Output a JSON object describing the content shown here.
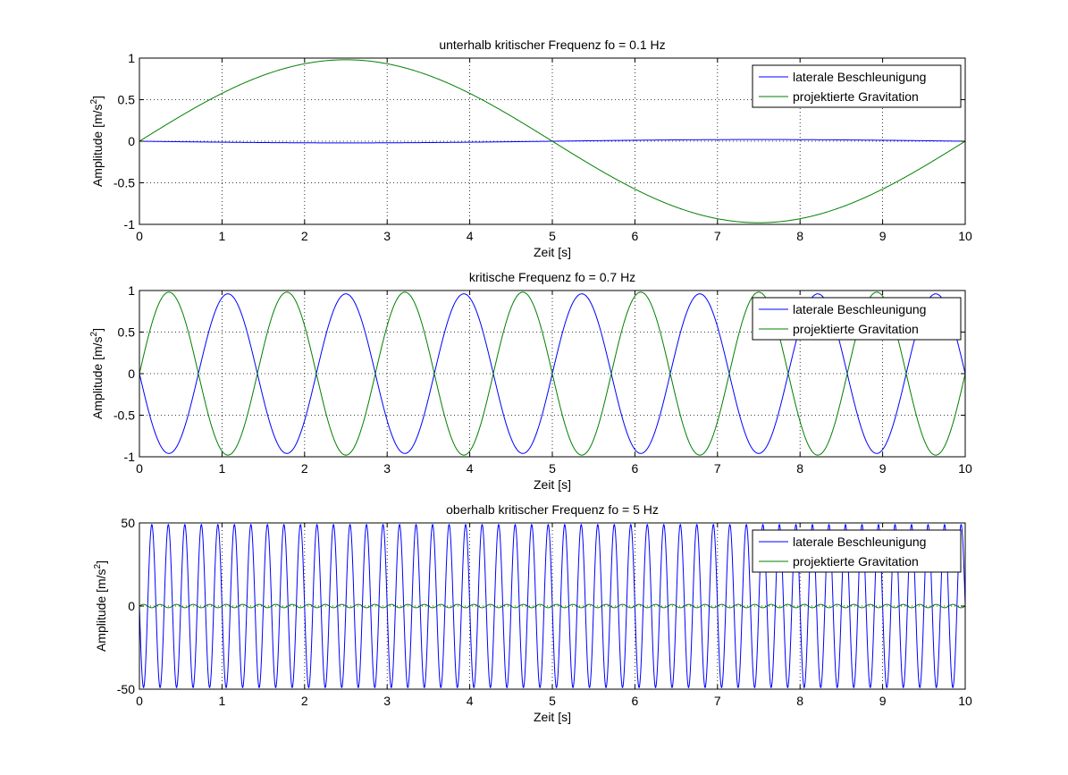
{
  "chart_data": [
    {
      "type": "line",
      "title": "unterhalb kritischer Frequenz fo = 0.1 Hz",
      "xlabel": "Zeit [s]",
      "ylabel_main": "Amplitude [m/s",
      "ylabel_sup": "2",
      "ylabel_end": "]",
      "xlim": [
        0,
        10
      ],
      "ylim": [
        -1,
        1
      ],
      "xticks": [
        0,
        1,
        2,
        3,
        4,
        5,
        6,
        7,
        8,
        9,
        10
      ],
      "yticks": [
        -1,
        -0.5,
        0,
        0.5,
        1
      ],
      "xtick_labels": [
        "0",
        "1",
        "2",
        "3",
        "4",
        "5",
        "6",
        "7",
        "8",
        "9",
        "10"
      ],
      "ytick_labels": [
        "-1",
        "-0.5",
        "0",
        "0.5",
        "1"
      ],
      "grid": true,
      "legend_position": "top-right",
      "series": [
        {
          "name": "laterale Beschleunigung",
          "color": "#0000ff",
          "func": "sin",
          "amplitude": -0.02,
          "frequency_hz": 0.1,
          "phase": 0
        },
        {
          "name": "projektierte Gravitation",
          "color": "#008000",
          "func": "sin",
          "amplitude": 0.98,
          "frequency_hz": 0.1,
          "phase": 0
        }
      ]
    },
    {
      "type": "line",
      "title": "kritische Frequenz fo = 0.7 Hz",
      "xlabel": "Zeit [s]",
      "ylabel_main": "Amplitude [m/s",
      "ylabel_sup": "2",
      "ylabel_end": "]",
      "xlim": [
        0,
        10
      ],
      "ylim": [
        -1,
        1
      ],
      "xticks": [
        0,
        1,
        2,
        3,
        4,
        5,
        6,
        7,
        8,
        9,
        10
      ],
      "yticks": [
        -1,
        -0.5,
        0,
        0.5,
        1
      ],
      "xtick_labels": [
        "0",
        "1",
        "2",
        "3",
        "4",
        "5",
        "6",
        "7",
        "8",
        "9",
        "10"
      ],
      "ytick_labels": [
        "-1",
        "-0.5",
        "0",
        "0.5",
        "1"
      ],
      "grid": true,
      "legend_position": "top-right",
      "series": [
        {
          "name": "laterale Beschleunigung",
          "color": "#0000ff",
          "func": "sin",
          "amplitude": -0.96,
          "frequency_hz": 0.7,
          "phase": 0
        },
        {
          "name": "projektierte Gravitation",
          "color": "#008000",
          "func": "sin",
          "amplitude": 0.98,
          "frequency_hz": 0.7,
          "phase": 0
        }
      ]
    },
    {
      "type": "line",
      "title": "oberhalb kritischer Frequenz fo = 5 Hz",
      "xlabel": "Zeit [s]",
      "ylabel_main": "Amplitude [m/s",
      "ylabel_sup": "2",
      "ylabel_end": "]",
      "xlim": [
        0,
        10
      ],
      "ylim": [
        -50,
        50
      ],
      "xticks": [
        0,
        1,
        2,
        3,
        4,
        5,
        6,
        7,
        8,
        9,
        10
      ],
      "yticks": [
        -50,
        0,
        50
      ],
      "xtick_labels": [
        "0",
        "1",
        "2",
        "3",
        "4",
        "5",
        "6",
        "7",
        "8",
        "9",
        "10"
      ],
      "ytick_labels": [
        "-50",
        "0",
        "50"
      ],
      "grid": true,
      "legend_position": "top-right",
      "series": [
        {
          "name": "laterale Beschleunigung",
          "color": "#0000ff",
          "func": "sin",
          "amplitude": -49,
          "frequency_hz": 5,
          "phase": 0
        },
        {
          "name": "projektierte Gravitation",
          "color": "#008000",
          "func": "sin",
          "amplitude": 1,
          "frequency_hz": 5,
          "phase": 0
        }
      ]
    }
  ]
}
